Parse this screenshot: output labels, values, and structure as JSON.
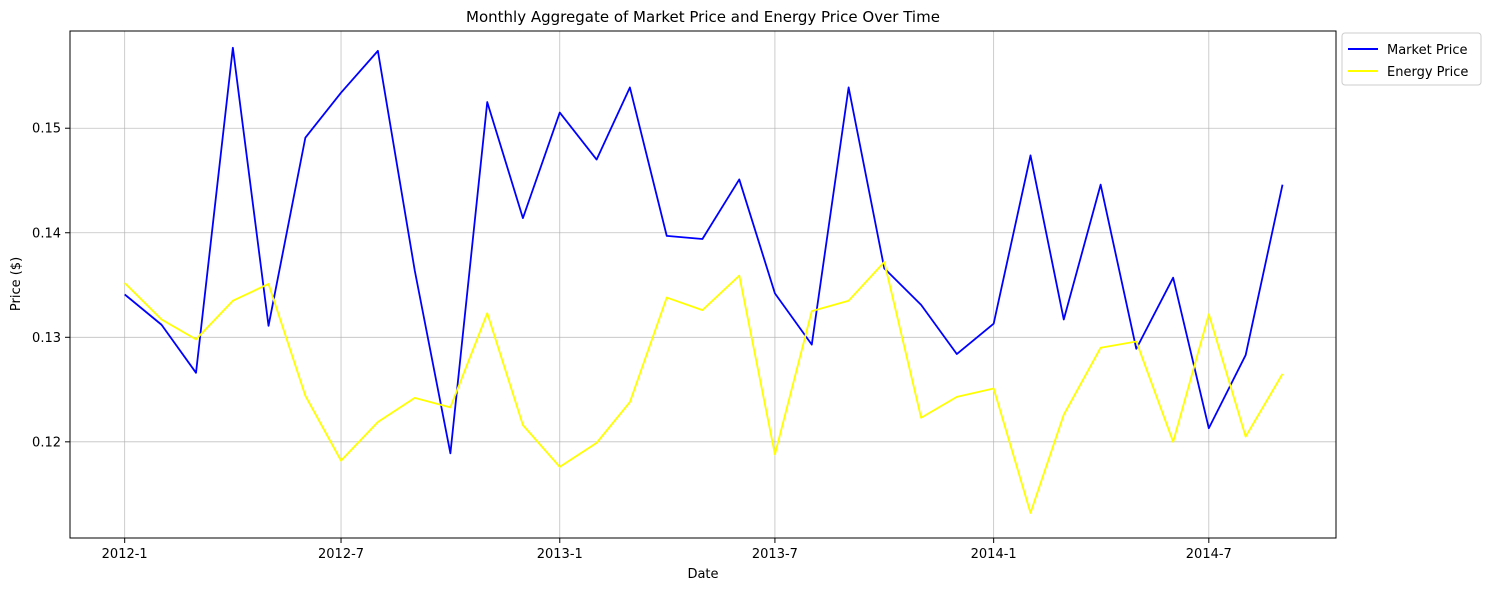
{
  "chart_data": {
    "type": "line",
    "title": "Monthly Aggregate of Market Price and Energy Price Over Time",
    "xlabel": "Date",
    "ylabel": "Price ($)",
    "x": [
      "2012-01",
      "2012-02",
      "2012-03",
      "2012-04",
      "2012-05",
      "2012-06",
      "2012-07",
      "2012-08",
      "2012-09",
      "2012-10",
      "2012-11",
      "2012-12",
      "2013-01",
      "2013-02",
      "2013-03",
      "2013-04",
      "2013-05",
      "2013-06",
      "2013-07",
      "2013-08",
      "2013-09",
      "2013-10",
      "2013-11",
      "2013-12",
      "2014-01",
      "2014-02",
      "2014-03",
      "2014-04",
      "2014-05",
      "2014-06",
      "2014-07",
      "2014-08",
      "2014-09"
    ],
    "x_ticks": [
      "2012-1",
      "2012-7",
      "2013-1",
      "2013-7",
      "2014-1",
      "2014-7"
    ],
    "x_tick_dates": [
      "2012-01",
      "2012-07",
      "2013-01",
      "2013-07",
      "2014-01",
      "2014-07"
    ],
    "y_ticks": [
      "0.12",
      "0.13",
      "0.14",
      "0.15"
    ],
    "y_tick_values": [
      0.12,
      0.13,
      0.14,
      0.15
    ],
    "ylim": [
      0.1108,
      0.1593
    ],
    "xlim": [
      "2011-11-16",
      "2014-10-16"
    ],
    "grid": true,
    "legend_position": "outside top-right",
    "series": [
      {
        "name": "Market Price",
        "color": "#0000ff",
        "values": [
          0.1341,
          0.1312,
          0.1266,
          0.1577,
          0.1311,
          0.1491,
          0.1534,
          0.1574,
          0.1364,
          0.1189,
          0.1525,
          0.1414,
          0.1515,
          0.147,
          0.1539,
          0.1397,
          0.1394,
          0.1451,
          0.1342,
          0.1293,
          0.1539,
          0.1366,
          0.1331,
          0.1284,
          0.1313,
          0.1474,
          0.1317,
          0.1446,
          0.1289,
          0.1357,
          0.1213,
          0.1283,
          0.1446
        ]
      },
      {
        "name": "Energy Price",
        "color": "#ffff00",
        "values": [
          0.1352,
          0.1317,
          0.1298,
          0.1335,
          0.1351,
          0.1244,
          0.1182,
          0.1219,
          0.1242,
          0.1233,
          0.1323,
          0.1216,
          0.1176,
          0.1199,
          0.1238,
          0.1338,
          0.1326,
          0.1359,
          0.1188,
          0.1325,
          0.1335,
          0.1372,
          0.1223,
          0.1243,
          0.1251,
          0.1132,
          0.1226,
          0.129,
          0.1296,
          0.12,
          0.1322,
          0.1205,
          0.1265
        ]
      }
    ]
  }
}
